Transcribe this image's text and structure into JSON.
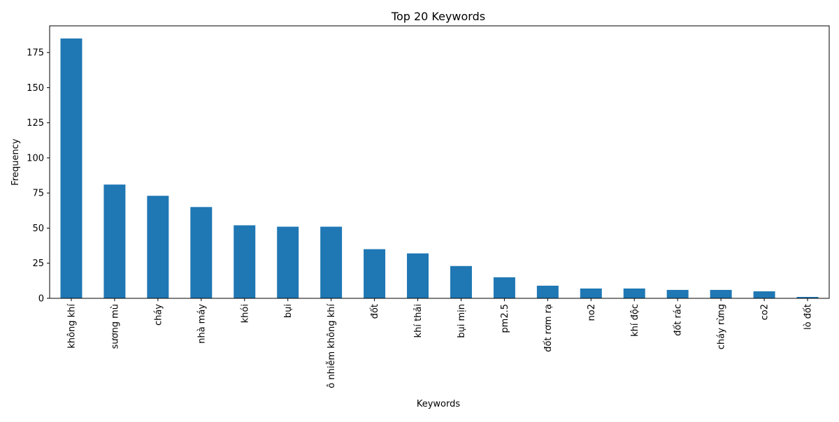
{
  "chart_data": {
    "type": "bar",
    "title": "Top 20 Keywords",
    "xlabel": "Keywords",
    "ylabel": "Frequency",
    "ylim": [
      0,
      194
    ],
    "yticks": [
      0,
      25,
      50,
      75,
      100,
      125,
      150,
      175
    ],
    "grid": false,
    "bar_color": "#1f77b4",
    "categories": [
      "không khí",
      "sương mù",
      "cháy",
      "nhà máy",
      "khói",
      "bụi",
      "ô nhiễm không khí",
      "đốt",
      "khí thải",
      "bụi mịn",
      "pm2.5",
      "đốt rơm rạ",
      "no2",
      "khí độc",
      "đốt rác",
      "cháy rừng",
      "co2",
      "lò đốt"
    ],
    "values": [
      185,
      81,
      73,
      65,
      52,
      51,
      51,
      35,
      32,
      23,
      15,
      9,
      7,
      7,
      6,
      6,
      5,
      1
    ]
  }
}
